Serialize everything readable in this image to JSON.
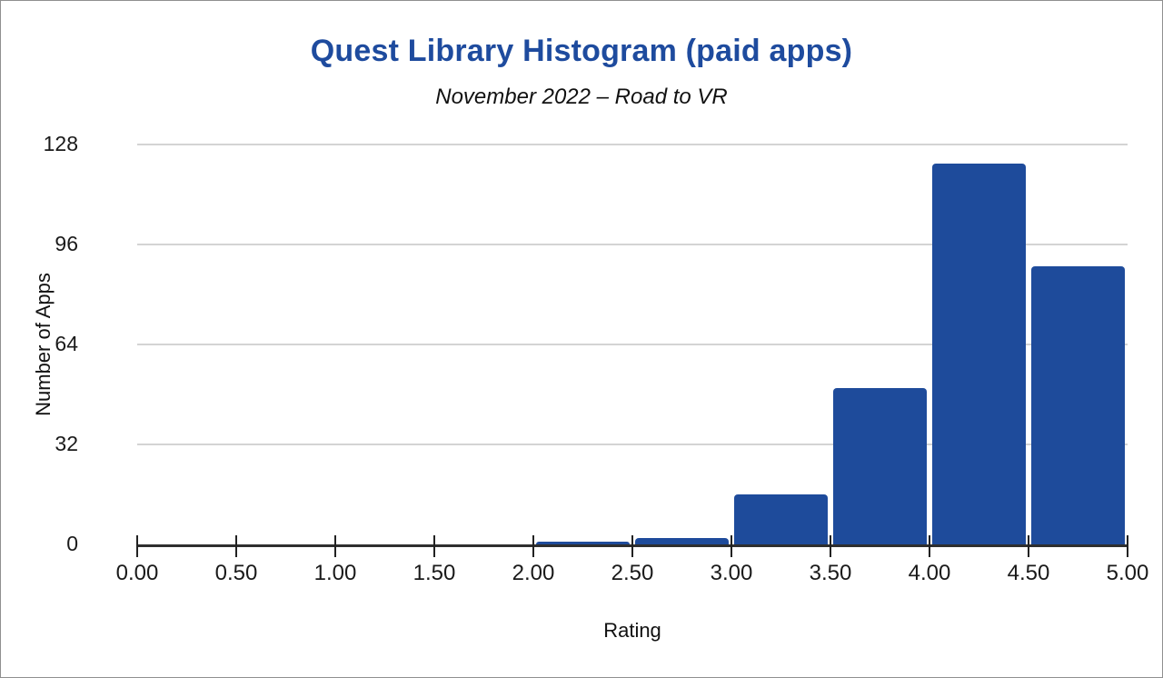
{
  "header": {
    "title": "Quest Library Histogram (paid apps)",
    "subtitle": "November 2022 – Road to VR"
  },
  "chart_data": {
    "type": "bar",
    "subtype": "histogram",
    "title": "Quest Library Histogram (paid apps)",
    "subtitle": "November 2022 – Road to VR",
    "xlabel": "Rating",
    "ylabel": "Number of Apps",
    "xlim": [
      0,
      5
    ],
    "ylim": [
      0,
      128
    ],
    "x_tick_labels": [
      "0.00",
      "0.50",
      "1.00",
      "1.50",
      "2.00",
      "2.50",
      "3.00",
      "3.50",
      "4.00",
      "4.50",
      "5.00"
    ],
    "y_tick_values": [
      0,
      32,
      64,
      96,
      128
    ],
    "grid": true,
    "legend": false,
    "bin_width": 0.5,
    "bins": [
      {
        "range": [
          2.0,
          2.5
        ],
        "count": 1
      },
      {
        "range": [
          2.5,
          3.0
        ],
        "count": 2
      },
      {
        "range": [
          3.0,
          3.5
        ],
        "count": 16
      },
      {
        "range": [
          3.5,
          4.0
        ],
        "count": 50
      },
      {
        "range": [
          4.0,
          4.5
        ],
        "count": 122
      },
      {
        "range": [
          4.5,
          5.0
        ],
        "count": 89
      }
    ]
  },
  "colors": {
    "bar": "#1e4b9b",
    "title": "#1e4b9e",
    "gridline": "#d4d4d4",
    "axis": "#2e2e2e",
    "tick_mark": "#222222",
    "background": "#ffffff"
  }
}
